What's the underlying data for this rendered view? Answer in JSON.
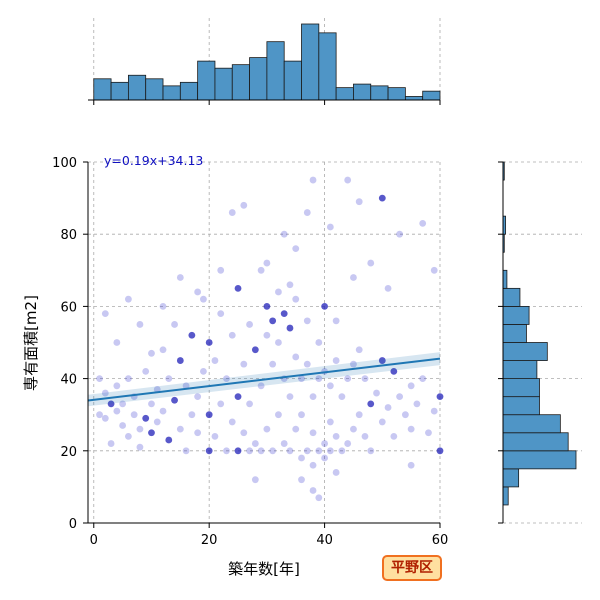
{
  "chart_data": {
    "type": "scatter",
    "xlabel": "築年数[年]",
    "ylabel": "専有面積[m2]",
    "xlim": [
      -1,
      60
    ],
    "ylim": [
      0,
      100
    ],
    "x_ticks": [
      0,
      20,
      40,
      60
    ],
    "y_ticks": [
      0,
      20,
      40,
      60,
      80,
      100
    ],
    "grid": true,
    "annotation": "y=0.19x+34.13",
    "regression": {
      "slope": 0.19,
      "intercept": 34.13
    },
    "badge": "平野区",
    "colors": {
      "point": "#3a3ad0",
      "line": "#1f77b4",
      "hist": "#4f95c6",
      "eq_text": "#1010c0"
    },
    "top_histogram": {
      "bin_edges": [
        0,
        3,
        6,
        9,
        12,
        15,
        18,
        21,
        24,
        27,
        30,
        33,
        36,
        39,
        42,
        45,
        48,
        51,
        54,
        57,
        60
      ],
      "heights": [
        12,
        10,
        14,
        12,
        8,
        10,
        22,
        18,
        20,
        24,
        33,
        22,
        43,
        38,
        7,
        9,
        8,
        7,
        2,
        5
      ]
    },
    "right_histogram": {
      "bin_edges": [
        5,
        10,
        15,
        20,
        25,
        30,
        35,
        40,
        45,
        50,
        55,
        60,
        65,
        70,
        75,
        80,
        85,
        90,
        95,
        100
      ],
      "heights": [
        4,
        12,
        56,
        50,
        44,
        28,
        28,
        26,
        34,
        18,
        20,
        13,
        3,
        0,
        1,
        2,
        0,
        0,
        1
      ]
    },
    "points": [
      [
        1,
        40
      ],
      [
        1,
        30
      ],
      [
        2,
        29
      ],
      [
        2,
        36
      ],
      [
        3,
        33
      ],
      [
        3,
        22
      ],
      [
        4,
        31
      ],
      [
        4,
        38
      ],
      [
        5,
        27
      ],
      [
        5,
        33
      ],
      [
        6,
        24
      ],
      [
        6,
        40
      ],
      [
        7,
        30
      ],
      [
        7,
        35
      ],
      [
        8,
        26
      ],
      [
        8,
        21
      ],
      [
        9,
        29
      ],
      [
        9,
        42
      ],
      [
        10,
        33
      ],
      [
        10,
        25
      ],
      [
        11,
        37
      ],
      [
        11,
        28
      ],
      [
        12,
        48
      ],
      [
        12,
        31
      ],
      [
        13,
        23
      ],
      [
        13,
        40
      ],
      [
        14,
        34
      ],
      [
        14,
        55
      ],
      [
        15,
        26
      ],
      [
        15,
        45
      ],
      [
        16,
        38
      ],
      [
        16,
        20
      ],
      [
        17,
        30
      ],
      [
        17,
        52
      ],
      [
        18,
        35
      ],
      [
        18,
        25
      ],
      [
        19,
        62
      ],
      [
        19,
        42
      ],
      [
        20,
        20
      ],
      [
        20,
        30
      ],
      [
        20,
        50
      ],
      [
        21,
        24
      ],
      [
        21,
        45
      ],
      [
        22,
        33
      ],
      [
        22,
        58
      ],
      [
        23,
        20
      ],
      [
        23,
        40
      ],
      [
        24,
        28
      ],
      [
        24,
        52
      ],
      [
        25,
        20
      ],
      [
        25,
        35
      ],
      [
        25,
        65
      ],
      [
        26,
        25
      ],
      [
        26,
        44
      ],
      [
        27,
        20
      ],
      [
        27,
        55
      ],
      [
        27,
        33
      ],
      [
        28,
        22
      ],
      [
        28,
        48
      ],
      [
        29,
        20
      ],
      [
        29,
        38
      ],
      [
        29,
        70
      ],
      [
        30,
        26
      ],
      [
        30,
        52
      ],
      [
        30,
        60
      ],
      [
        31,
        20
      ],
      [
        31,
        44
      ],
      [
        31,
        56
      ],
      [
        32,
        30
      ],
      [
        32,
        50
      ],
      [
        32,
        64
      ],
      [
        33,
        22
      ],
      [
        33,
        58
      ],
      [
        33,
        40
      ],
      [
        34,
        20
      ],
      [
        34,
        35
      ],
      [
        34,
        54
      ],
      [
        35,
        26
      ],
      [
        35,
        46
      ],
      [
        35,
        62
      ],
      [
        36,
        18
      ],
      [
        36,
        40
      ],
      [
        36,
        30
      ],
      [
        37,
        20
      ],
      [
        37,
        44
      ],
      [
        37,
        56
      ],
      [
        38,
        16
      ],
      [
        38,
        35
      ],
      [
        38,
        25
      ],
      [
        39,
        20
      ],
      [
        39,
        40
      ],
      [
        39,
        50
      ],
      [
        40,
        18
      ],
      [
        40,
        42
      ],
      [
        40,
        22
      ],
      [
        41,
        20
      ],
      [
        41,
        38
      ],
      [
        41,
        28
      ],
      [
        42,
        24
      ],
      [
        42,
        45
      ],
      [
        43,
        20
      ],
      [
        43,
        35
      ],
      [
        44,
        22
      ],
      [
        44,
        40
      ],
      [
        45,
        26
      ],
      [
        45,
        44
      ],
      [
        46,
        30
      ],
      [
        46,
        48
      ],
      [
        47,
        24
      ],
      [
        47,
        40
      ],
      [
        48,
        33
      ],
      [
        48,
        20
      ],
      [
        49,
        36
      ],
      [
        50,
        28
      ],
      [
        50,
        45
      ],
      [
        51,
        32
      ],
      [
        52,
        24
      ],
      [
        52,
        42
      ],
      [
        53,
        35
      ],
      [
        54,
        30
      ],
      [
        55,
        26
      ],
      [
        55,
        38
      ],
      [
        56,
        33
      ],
      [
        57,
        40
      ],
      [
        58,
        25
      ],
      [
        59,
        31
      ],
      [
        60,
        35
      ],
      [
        2,
        58
      ],
      [
        4,
        50
      ],
      [
        6,
        62
      ],
      [
        8,
        55
      ],
      [
        10,
        47
      ],
      [
        12,
        60
      ],
      [
        15,
        68
      ],
      [
        18,
        64
      ],
      [
        22,
        70
      ],
      [
        24,
        86
      ],
      [
        26,
        88
      ],
      [
        30,
        72
      ],
      [
        33,
        80
      ],
      [
        35,
        76
      ],
      [
        37,
        86
      ],
      [
        38,
        95
      ],
      [
        41,
        82
      ],
      [
        44,
        95
      ],
      [
        46,
        89
      ],
      [
        50,
        90
      ],
      [
        53,
        80
      ],
      [
        57,
        83
      ],
      [
        59,
        70
      ],
      [
        28,
        12
      ],
      [
        36,
        12
      ],
      [
        38,
        9
      ],
      [
        39,
        7
      ],
      [
        42,
        14
      ],
      [
        55,
        16
      ],
      [
        60,
        20
      ],
      [
        45,
        68
      ],
      [
        48,
        72
      ],
      [
        51,
        65
      ],
      [
        40,
        60
      ],
      [
        42,
        56
      ],
      [
        34,
        66
      ]
    ]
  }
}
